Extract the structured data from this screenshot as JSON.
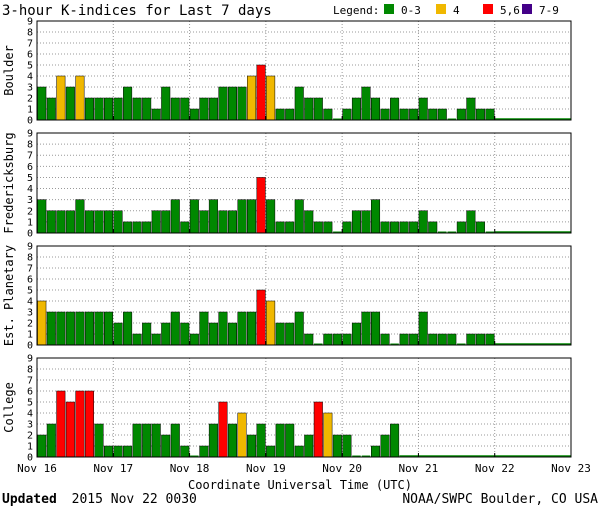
{
  "chart_data": {
    "type": "bar",
    "title": "3-hour K-indices for Last 7 days",
    "legend": {
      "label": "Legend:",
      "placement": "top-right",
      "entries": [
        {
          "label": "0-3",
          "color": "#008800"
        },
        {
          "label": "4",
          "color": "#f0b800"
        },
        {
          "label": "5,6",
          "color": "#ff0000"
        },
        {
          "label": "7-9",
          "color": "#440088"
        }
      ]
    },
    "ylim": [
      0,
      9
    ],
    "yticks": [
      0,
      1,
      2,
      3,
      4,
      5,
      6,
      7,
      8,
      9
    ],
    "grid": true,
    "xlabel": "Coordinate Universal Time (UTC)",
    "x_tick_labels": [
      "Nov 16",
      "Nov 17",
      "Nov 18",
      "Nov 19",
      "Nov 20",
      "Nov 21",
      "Nov 22",
      "Nov 23"
    ],
    "bins_per_day": 8,
    "panels": [
      {
        "name": "Boulder",
        "values": [
          3,
          2,
          4,
          3,
          4,
          2,
          2,
          2,
          2,
          3,
          2,
          2,
          1,
          3,
          2,
          2,
          1,
          2,
          2,
          3,
          3,
          3,
          4,
          5,
          4,
          1,
          1,
          3,
          2,
          2,
          1,
          0,
          1,
          2,
          3,
          2,
          1,
          2,
          1,
          1,
          2,
          1,
          1,
          0,
          1,
          2,
          1,
          1
        ]
      },
      {
        "name": "Fredericksburg",
        "values": [
          3,
          2,
          2,
          2,
          3,
          2,
          2,
          2,
          2,
          1,
          1,
          1,
          2,
          2,
          3,
          1,
          3,
          2,
          3,
          2,
          2,
          3,
          3,
          5,
          3,
          1,
          1,
          3,
          2,
          1,
          1,
          0,
          1,
          2,
          2,
          3,
          1,
          1,
          1,
          1,
          2,
          1,
          0,
          0,
          1,
          2,
          1,
          0
        ]
      },
      {
        "name": "Est. Planetary",
        "values": [
          4,
          3,
          3,
          3,
          3,
          3,
          3,
          3,
          2,
          3,
          1,
          2,
          1,
          2,
          3,
          2,
          1,
          3,
          2,
          3,
          2,
          3,
          3,
          5,
          4,
          2,
          2,
          3,
          1,
          0,
          1,
          1,
          1,
          2,
          3,
          3,
          1,
          0,
          1,
          1,
          3,
          1,
          1,
          1,
          0,
          1,
          1,
          1
        ]
      },
      {
        "name": "College",
        "values": [
          2,
          3,
          6,
          5,
          6,
          6,
          3,
          1,
          1,
          1,
          3,
          3,
          3,
          2,
          3,
          1,
          0,
          1,
          3,
          5,
          3,
          4,
          2,
          3,
          1,
          3,
          3,
          1,
          2,
          5,
          4,
          2,
          2,
          0,
          0,
          1,
          2,
          3
        ]
      }
    ]
  },
  "footer": {
    "updated_label": "Updated",
    "updated_value": "2015 Nov 22 0030",
    "credit": "NOAA/SWPC Boulder, CO USA"
  }
}
